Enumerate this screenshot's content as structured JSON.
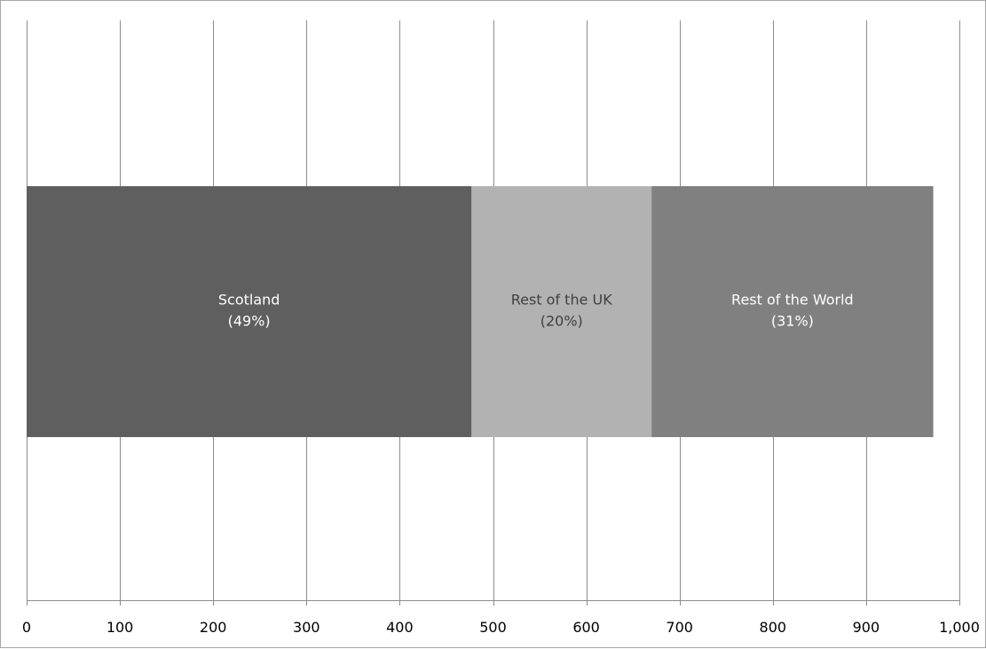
{
  "chart_data": {
    "type": "bar",
    "orientation": "horizontal",
    "stacked": true,
    "title": "",
    "xlabel": "",
    "ylabel": "",
    "xlim": [
      0,
      1000
    ],
    "x_ticks": [
      0,
      100,
      200,
      300,
      400,
      500,
      600,
      700,
      800,
      900,
      1000
    ],
    "x_tick_labels": [
      "0",
      "100",
      "200",
      "300",
      "400",
      "500",
      "600",
      "700",
      "800",
      "900",
      "1,000"
    ],
    "grid": "vertical gridlines",
    "legend": "none",
    "categories": [
      ""
    ],
    "series": [
      {
        "name": "Scotland",
        "values": [
          477
        ],
        "percent_label": "(49%)",
        "color": "#5f5f5f",
        "label_color": "#ffffff"
      },
      {
        "name": "Rest of the UK",
        "values": [
          193
        ],
        "percent_label": "(20%)",
        "color": "#b2b2b2",
        "label_color": "#404040"
      },
      {
        "name": "Rest of the World",
        "values": [
          302
        ],
        "percent_label": "(31%)",
        "color": "#808080",
        "label_color": "#ffffff"
      }
    ]
  }
}
